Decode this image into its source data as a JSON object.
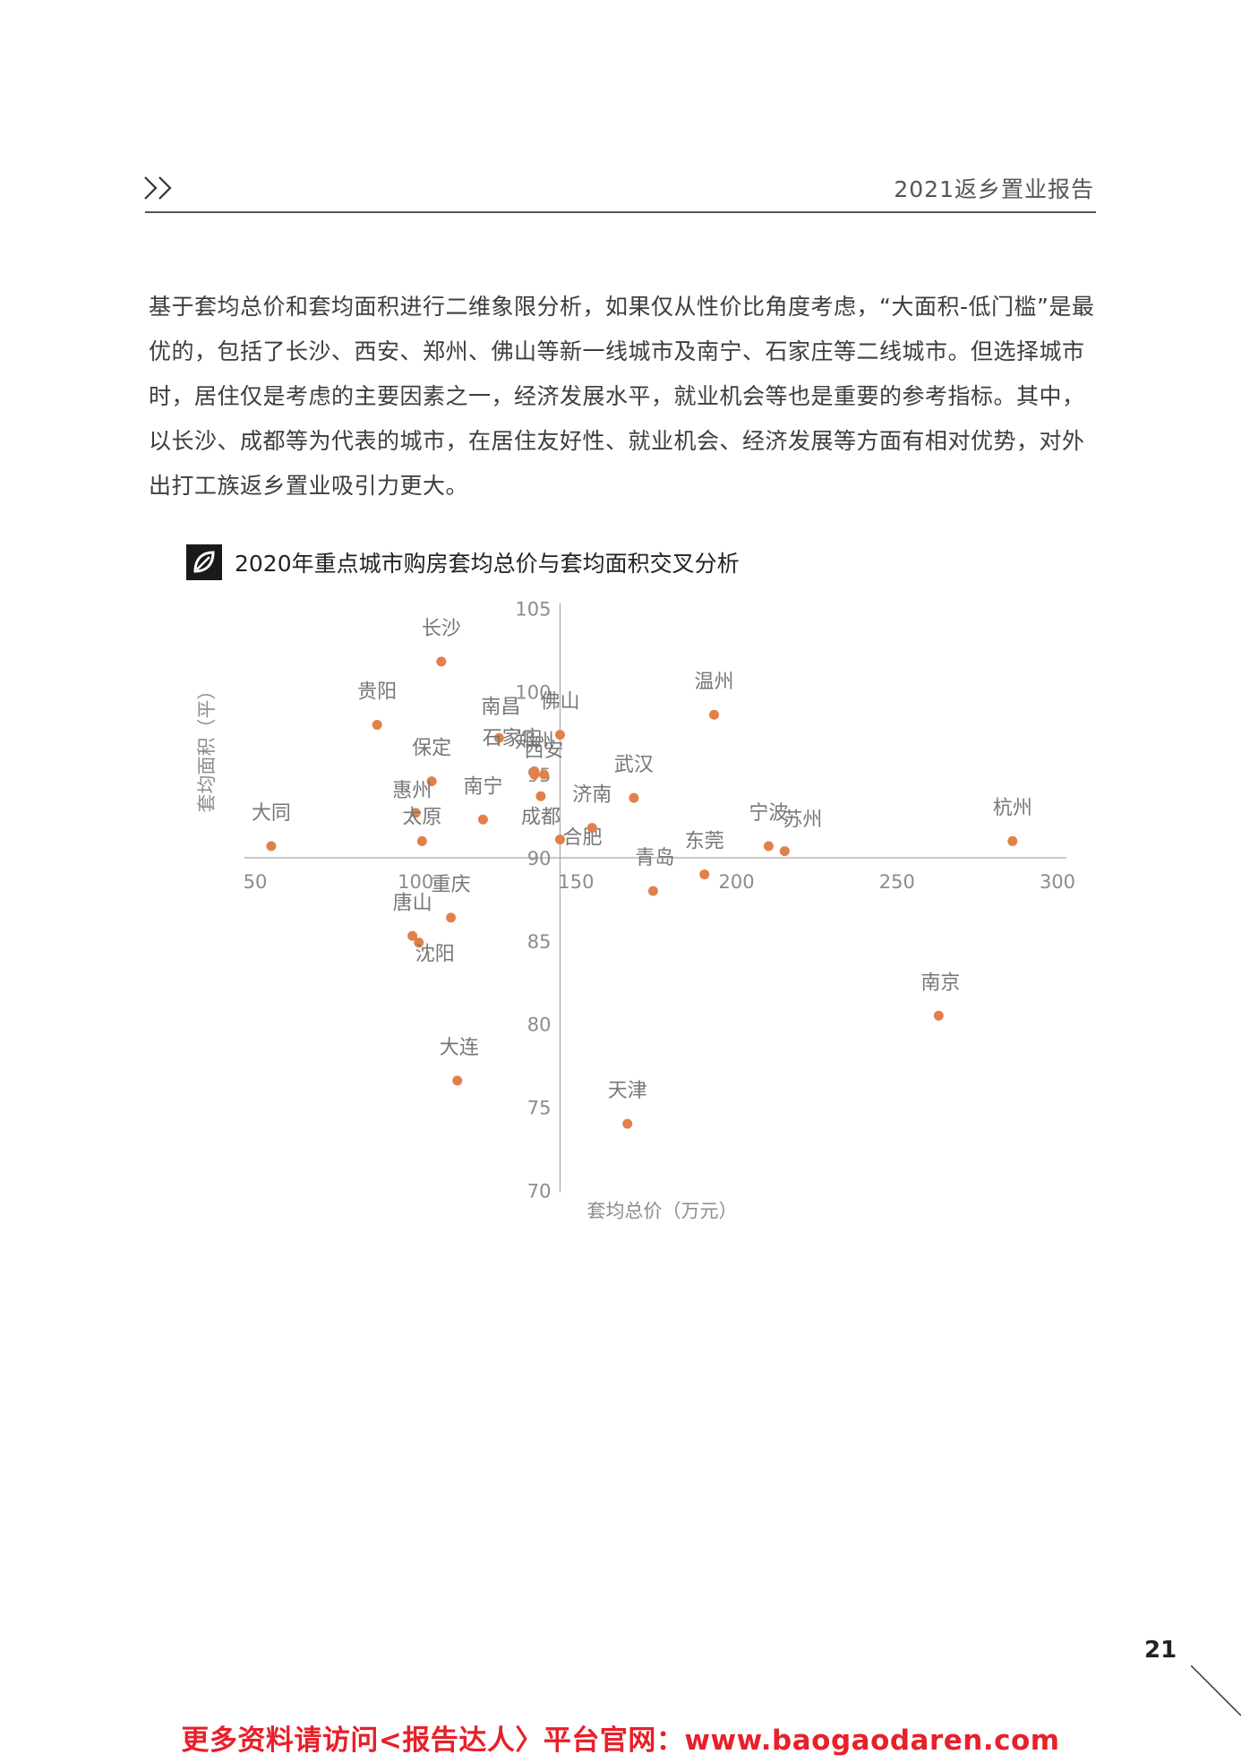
{
  "header": {
    "chevrons_icon": "double-chevron-right-icon",
    "title": "2021返乡置业报告"
  },
  "body_text": "基于套均总价和套均面积进行二维象限分析，如果仅从性价比角度考虑，“大面积-低门槛”是最优的，包括了长沙、西安、郑州、佛山等新一线城市及南宁、石家庄等二线城市。但选择城市时，居住仅是考虑的主要因素之一，经济发展水平，就业机会等也是重要的参考指标。其中，以长沙、成都等为代表的城市，在居住友好性、就业机会、经济发展等方面有相对优势，对外出打工族返乡置业吸引力更大。",
  "chart_heading": {
    "icon": "brand-logo-icon",
    "text": "2020年重点城市购房套均总价与套均面积交叉分析"
  },
  "chart_data": {
    "type": "scatter",
    "title": "2020年重点城市购房套均总价与套均面积交叉分析",
    "xlabel": "套均总价（万元）",
    "ylabel": "套均面积（平）",
    "xlim": [
      50,
      300
    ],
    "ylim": [
      70,
      105
    ],
    "x_axis_crosses_y_at": 90,
    "y_axis_crosses_x_at": 145,
    "x_ticks": [
      "50",
      "100",
      "150",
      "200",
      "250",
      "300"
    ],
    "y_ticks": [
      "105",
      "100",
      "95",
      "90",
      "85",
      "80",
      "75",
      "70"
    ],
    "grid": false,
    "legend": "none",
    "point_color": "#e2804b",
    "points": [
      {
        "city": "长沙",
        "x": 108,
        "y": 101.8
      },
      {
        "city": "贵阳",
        "x": 88,
        "y": 98.0
      },
      {
        "city": "南昌",
        "x": 126,
        "y": 97.2
      },
      {
        "city": "佛山",
        "x": 145,
        "y": 97.4
      },
      {
        "city": "郑州",
        "x": 137,
        "y": 95.0
      },
      {
        "city": "石家庄",
        "x": 137,
        "y": 95.2
      },
      {
        "city": "西安",
        "x": 140,
        "y": 95.0
      },
      {
        "city": "保定",
        "x": 105,
        "y": 94.6
      },
      {
        "city": "南宁",
        "x": 121,
        "y": 92.3
      },
      {
        "city": "惠州",
        "x": 100,
        "y": 92.7
      },
      {
        "city": "太原",
        "x": 102,
        "y": 91.0
      },
      {
        "city": "成都",
        "x": 139,
        "y": 93.7
      },
      {
        "city": "合肥",
        "x": 145,
        "y": 91.1
      },
      {
        "city": "济南",
        "x": 155,
        "y": 91.8
      },
      {
        "city": "武汉",
        "x": 168,
        "y": 93.6
      },
      {
        "city": "大同",
        "x": 55,
        "y": 90.7
      },
      {
        "city": "重庆",
        "x": 111,
        "y": 86.4
      },
      {
        "city": "唐山",
        "x": 99,
        "y": 85.3
      },
      {
        "city": "沈阳",
        "x": 101,
        "y": 84.9
      },
      {
        "city": "青岛",
        "x": 174,
        "y": 88.0
      },
      {
        "city": "东莞",
        "x": 190,
        "y": 89.0
      },
      {
        "city": "宁波",
        "x": 210,
        "y": 90.7
      },
      {
        "city": "苏州",
        "x": 215,
        "y": 90.4
      },
      {
        "city": "温州",
        "x": 193,
        "y": 98.6
      },
      {
        "city": "杭州",
        "x": 286,
        "y": 91.0
      },
      {
        "city": "南京",
        "x": 263,
        "y": 80.5
      },
      {
        "city": "大连",
        "x": 113,
        "y": 76.6
      },
      {
        "city": "天津",
        "x": 166,
        "y": 74.0
      }
    ]
  },
  "page_number": "21",
  "footer": {
    "promo": "更多资料请访问<报告达人〉平台官网：www.baogaodaren.com"
  }
}
